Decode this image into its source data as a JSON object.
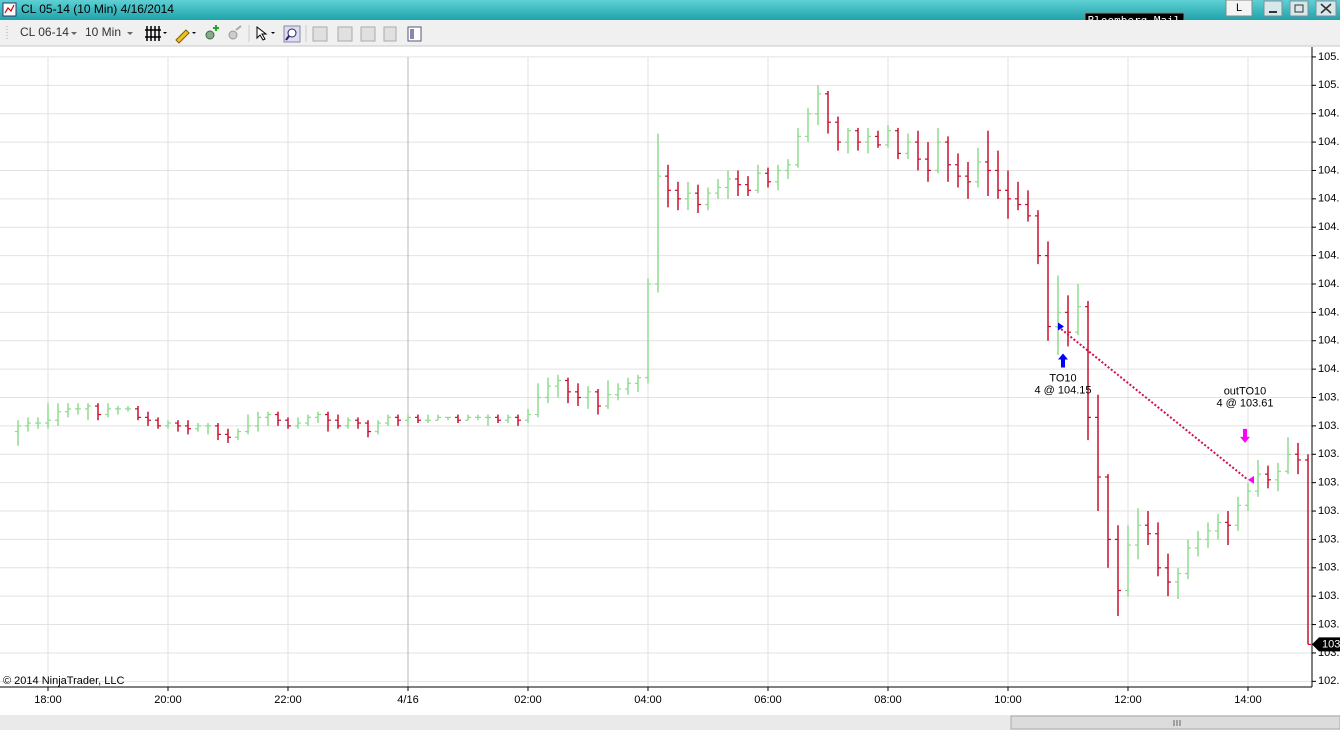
{
  "window": {
    "title": "CL 05-14 (10 Min)  4/16/2014",
    "mail": "Bloomberg Mail",
    "link_button": "L"
  },
  "toolbar": {
    "instrument": "CL 06-14",
    "interval": "10 Min"
  },
  "copyright": "© 2014 NinjaTrader, LLC",
  "chart_data": {
    "type": "ohlc",
    "up_color": "#8fdc8f",
    "down_color": "#c8102e",
    "grid": true,
    "open": [
      103.78,
      103.8,
      103.81,
      103.81,
      103.82,
      103.85,
      103.86,
      103.86,
      103.87,
      103.84,
      103.86,
      103.86,
      103.86,
      103.83,
      103.82,
      103.8,
      103.81,
      103.8,
      103.79,
      103.8,
      103.8,
      103.77,
      103.76,
      103.78,
      103.8,
      103.83,
      103.84,
      103.82,
      103.8,
      103.81,
      103.83,
      103.84,
      103.82,
      103.8,
      103.82,
      103.81,
      103.78,
      103.81,
      103.83,
      103.82,
      103.83,
      103.82,
      103.82,
      103.83,
      103.83,
      103.82,
      103.83,
      103.83,
      103.83,
      103.82,
      103.83,
      103.82,
      103.84,
      103.9,
      103.94,
      103.96,
      103.92,
      103.9,
      103.92,
      103.87,
      103.91,
      103.93,
      103.95,
      103.97,
      104.3,
      104.68,
      104.63,
      104.6,
      104.62,
      104.58,
      104.62,
      104.64,
      104.67,
      104.65,
      104.63,
      104.69,
      104.66,
      104.7,
      104.72,
      104.82,
      104.9,
      104.97,
      104.87,
      104.8,
      104.84,
      104.8,
      104.82,
      104.79,
      104.84,
      104.76,
      104.8,
      104.74,
      104.7,
      104.8,
      104.72,
      104.68,
      104.66,
      104.73,
      104.7,
      104.63,
      104.6,
      104.58,
      104.54,
      104.4,
      104.15,
      104.2,
      104.13,
      104.22,
      103.83,
      103.62,
      103.4,
      103.22,
      103.38,
      103.45,
      103.42,
      103.3,
      103.25,
      103.28,
      103.37,
      103.4,
      103.43,
      103.46,
      103.45,
      103.52,
      103.57,
      103.63,
      103.61,
      103.64,
      103.7,
      103.68
    ],
    "high": [
      103.82,
      103.83,
      103.83,
      103.88,
      103.88,
      103.88,
      103.88,
      103.88,
      103.88,
      103.88,
      103.87,
      103.87,
      103.87,
      103.85,
      103.83,
      103.82,
      103.82,
      103.82,
      103.81,
      103.81,
      103.81,
      103.79,
      103.79,
      103.84,
      103.85,
      103.85,
      103.85,
      103.83,
      103.83,
      103.84,
      103.85,
      103.85,
      103.84,
      103.83,
      103.83,
      103.82,
      103.82,
      103.84,
      103.84,
      103.84,
      103.84,
      103.84,
      103.84,
      103.83,
      103.84,
      103.84,
      103.84,
      103.84,
      103.84,
      103.84,
      103.84,
      103.86,
      103.95,
      103.97,
      103.98,
      103.97,
      103.95,
      103.94,
      103.93,
      103.96,
      103.95,
      103.97,
      103.98,
      104.32,
      104.83,
      104.72,
      104.66,
      104.66,
      104.65,
      104.64,
      104.67,
      104.7,
      104.7,
      104.68,
      104.72,
      104.71,
      104.72,
      104.74,
      104.85,
      104.92,
      105.0,
      104.98,
      104.89,
      104.85,
      104.85,
      104.85,
      104.84,
      104.86,
      104.85,
      104.83,
      104.84,
      104.8,
      104.85,
      104.82,
      104.76,
      104.73,
      104.78,
      104.84,
      104.77,
      104.7,
      104.66,
      104.63,
      104.56,
      104.45,
      104.33,
      104.26,
      104.3,
      104.24,
      103.91,
      103.63,
      103.45,
      103.45,
      103.51,
      103.5,
      103.46,
      103.35,
      103.3,
      103.4,
      103.43,
      103.46,
      103.49,
      103.5,
      103.55,
      103.6,
      103.68,
      103.66,
      103.67,
      103.76,
      103.74,
      103.7
    ],
    "low": [
      103.73,
      103.78,
      103.79,
      103.79,
      103.8,
      103.83,
      103.84,
      103.82,
      103.82,
      103.83,
      103.84,
      103.85,
      103.82,
      103.8,
      103.79,
      103.79,
      103.78,
      103.77,
      103.78,
      103.77,
      103.75,
      103.74,
      103.75,
      103.77,
      103.78,
      103.8,
      103.8,
      103.79,
      103.79,
      103.8,
      103.81,
      103.78,
      103.79,
      103.79,
      103.79,
      103.76,
      103.77,
      103.8,
      103.8,
      103.8,
      103.81,
      103.81,
      103.82,
      103.82,
      103.81,
      103.82,
      103.82,
      103.8,
      103.81,
      103.81,
      103.8,
      103.81,
      103.83,
      103.88,
      103.9,
      103.88,
      103.87,
      103.86,
      103.84,
      103.86,
      103.89,
      103.91,
      103.92,
      103.95,
      104.27,
      104.57,
      104.56,
      104.56,
      104.55,
      104.56,
      104.6,
      104.6,
      104.61,
      104.61,
      104.62,
      104.64,
      104.63,
      104.67,
      104.71,
      104.8,
      104.86,
      104.83,
      104.77,
      104.76,
      104.77,
      104.76,
      104.78,
      104.78,
      104.74,
      104.74,
      104.7,
      104.66,
      104.69,
      104.66,
      104.64,
      104.6,
      104.64,
      104.61,
      104.6,
      104.53,
      104.56,
      104.52,
      104.37,
      104.1,
      104.05,
      104.08,
      104.12,
      103.75,
      103.5,
      103.3,
      103.13,
      103.2,
      103.33,
      103.38,
      103.27,
      103.2,
      103.19,
      103.26,
      103.34,
      103.37,
      103.4,
      103.38,
      103.43,
      103.5,
      103.55,
      103.58,
      103.57,
      103.63,
      103.63,
      103.03
    ],
    "close": [
      103.8,
      103.81,
      103.81,
      103.82,
      103.85,
      103.86,
      103.86,
      103.87,
      103.84,
      103.86,
      103.86,
      103.86,
      103.83,
      103.82,
      103.8,
      103.81,
      103.8,
      103.79,
      103.8,
      103.8,
      103.77,
      103.76,
      103.78,
      103.8,
      103.83,
      103.84,
      103.82,
      103.8,
      103.81,
      103.83,
      103.84,
      103.82,
      103.8,
      103.82,
      103.81,
      103.78,
      103.81,
      103.83,
      103.82,
      103.83,
      103.82,
      103.82,
      103.83,
      103.83,
      103.82,
      103.83,
      103.83,
      103.83,
      103.82,
      103.83,
      103.82,
      103.84,
      103.9,
      103.94,
      103.96,
      103.92,
      103.9,
      103.92,
      103.87,
      103.91,
      103.93,
      103.95,
      103.97,
      104.3,
      104.68,
      104.63,
      104.6,
      104.62,
      104.58,
      104.62,
      104.64,
      104.67,
      104.65,
      104.63,
      104.69,
      104.66,
      104.7,
      104.72,
      104.82,
      104.9,
      104.97,
      104.87,
      104.8,
      104.84,
      104.8,
      104.82,
      104.79,
      104.84,
      104.76,
      104.8,
      104.74,
      104.7,
      104.8,
      104.72,
      104.68,
      104.66,
      104.73,
      104.7,
      104.63,
      104.6,
      104.58,
      104.54,
      104.4,
      104.15,
      104.2,
      104.13,
      104.22,
      103.83,
      103.62,
      103.4,
      103.22,
      103.38,
      103.45,
      103.42,
      103.3,
      103.25,
      103.28,
      103.37,
      103.4,
      103.43,
      103.46,
      103.45,
      103.52,
      103.57,
      103.63,
      103.61,
      103.64,
      103.7,
      103.68,
      103.03
    ],
    "xlim": [
      -1.8,
      129.4
    ],
    "xticks": [
      {
        "value": 3,
        "label": "18:00"
      },
      {
        "value": 15,
        "label": "20:00"
      },
      {
        "value": 27,
        "label": "22:00"
      },
      {
        "value": 39,
        "label": "4/16"
      },
      {
        "value": 51,
        "label": "02:00"
      },
      {
        "value": 63,
        "label": "04:00"
      },
      {
        "value": 75,
        "label": "06:00"
      },
      {
        "value": 87,
        "label": "08:00"
      },
      {
        "value": 99,
        "label": "10:00"
      },
      {
        "value": 111,
        "label": "12:00"
      },
      {
        "value": 123,
        "label": "14:00"
      }
    ],
    "ylim": [
      102.88,
      105.135
    ],
    "yticks": [
      {
        "value": 105.1,
        "label": "105."
      },
      {
        "value": 105.0,
        "label": "105."
      },
      {
        "value": 104.9,
        "label": "104."
      },
      {
        "value": 104.8,
        "label": "104."
      },
      {
        "value": 104.7,
        "label": "104."
      },
      {
        "value": 104.6,
        "label": "104."
      },
      {
        "value": 104.5,
        "label": "104."
      },
      {
        "value": 104.4,
        "label": "104."
      },
      {
        "value": 104.3,
        "label": "104."
      },
      {
        "value": 104.2,
        "label": "104."
      },
      {
        "value": 104.1,
        "label": "104."
      },
      {
        "value": 104.0,
        "label": "104."
      },
      {
        "value": 103.9,
        "label": "103."
      },
      {
        "value": 103.8,
        "label": "103."
      },
      {
        "value": 103.7,
        "label": "103."
      },
      {
        "value": 103.6,
        "label": "103."
      },
      {
        "value": 103.5,
        "label": "103."
      },
      {
        "value": 103.4,
        "label": "103."
      },
      {
        "value": 103.3,
        "label": "103."
      },
      {
        "value": 103.2,
        "label": "103."
      },
      {
        "value": 103.1,
        "label": "103."
      },
      {
        "value": 103.0,
        "label": "103."
      },
      {
        "value": 102.9,
        "label": "102."
      }
    ],
    "last_price": 103.03,
    "last_price_label": "103",
    "trades": [
      {
        "name": "TO10",
        "label": "4 @ 104.15",
        "index": 104,
        "price": 104.15,
        "side": "entry",
        "color": "#0000ff"
      },
      {
        "name": "outTO10",
        "label": "4 @ 103.61",
        "index": 123,
        "price": 103.61,
        "side": "exit",
        "color": "#ff00ff"
      }
    ],
    "trade_line_color": "#d0104a"
  }
}
